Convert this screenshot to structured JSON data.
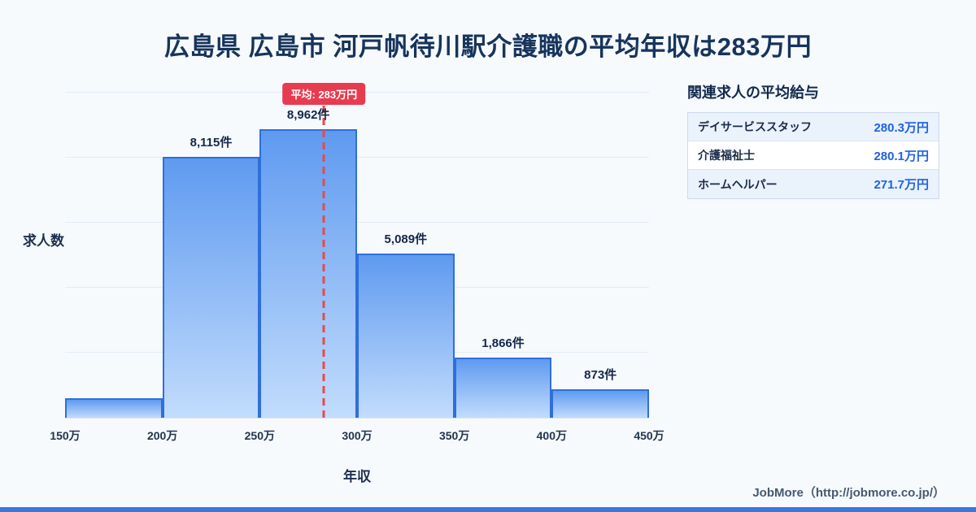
{
  "title": "広島県 広島市 河戸帆待川駅介護職の平均年収は283万円",
  "chart_data": {
    "type": "bar",
    "title": "広島県 広島市 河戸帆待川駅介護職の平均年収は283万円",
    "xlabel": "年収",
    "ylabel": "求人数",
    "x_range": [
      150,
      450
    ],
    "x_ticks": [
      "150万",
      "200万",
      "250万",
      "300万",
      "350万",
      "400万",
      "450万"
    ],
    "bins": [
      {
        "range": "150万-200万",
        "count": 600,
        "label": ""
      },
      {
        "range": "200万-250万",
        "count": 8115,
        "label": "8,115件"
      },
      {
        "range": "250万-300万",
        "count": 8962,
        "label": "8,962件"
      },
      {
        "range": "300万-350万",
        "count": 5089,
        "label": "5,089件"
      },
      {
        "range": "350万-400万",
        "count": 1866,
        "label": "1,866件"
      },
      {
        "range": "400万-450万",
        "count": 873,
        "label": "873件"
      }
    ],
    "average": {
      "value": 283,
      "label": "平均: 283万円"
    },
    "ylim": [
      0,
      10000
    ],
    "grid": true,
    "legend": false
  },
  "side_panel": {
    "title": "関連求人の平均給与",
    "rows": [
      {
        "name": "デイサービススタッフ",
        "salary": "280.3万円"
      },
      {
        "name": "介護福祉士",
        "salary": "280.1万円"
      },
      {
        "name": "ホームヘルパー",
        "salary": "271.7万円"
      }
    ]
  },
  "footer": {
    "credit": "JobMore（http://jobmore.co.jp/）"
  },
  "colors": {
    "bar_top": "#5f9af0",
    "bar_bottom": "#c2dcfc",
    "bar_border": "#2f6fdb",
    "average_red": "#e73c50",
    "value_blue": "#1f62e4",
    "title_navy": "#16345c",
    "background": "#f7fafd"
  }
}
